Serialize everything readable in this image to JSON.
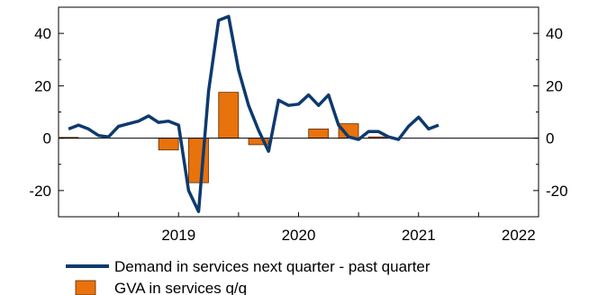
{
  "chart_data": {
    "type": "bar+line",
    "title": "",
    "xlabel": "",
    "ylabel": "",
    "ylim": [
      -30,
      50
    ],
    "y_ticks": [
      -20,
      0,
      20,
      40
    ],
    "y_tick_labels": [
      "-20",
      "0",
      "20",
      "40"
    ],
    "y_axis_right": true,
    "x_range": [
      "2018-07",
      "2022-07"
    ],
    "x_year_labels": [
      {
        "label": "2019",
        "x": "2019-07"
      },
      {
        "label": "2020",
        "x": "2020-07"
      },
      {
        "label": "2021",
        "x": "2021-07"
      },
      {
        "label": "2022",
        "x": "2022-05"
      }
    ],
    "x_tick_dates": [
      "2019-01",
      "2019-07",
      "2020-01",
      "2020-07",
      "2021-01",
      "2021-07",
      "2022-01",
      "2022-07"
    ],
    "grid": false,
    "legend_position": "bottom",
    "series": [
      {
        "name": "Demand in services next quarter - past quarter",
        "type": "line",
        "color": "#0d3a6e",
        "points": [
          [
            "2018-08",
            3.5
          ],
          [
            "2018-09",
            5
          ],
          [
            "2018-10",
            3.5
          ],
          [
            "2018-11",
            1
          ],
          [
            "2018-12",
            0.5
          ],
          [
            "2019-01",
            4.5
          ],
          [
            "2019-02",
            5.5
          ],
          [
            "2019-03",
            6.5
          ],
          [
            "2019-04",
            8.5
          ],
          [
            "2019-05",
            6
          ],
          [
            "2019-06",
            6.5
          ],
          [
            "2019-07",
            5
          ],
          [
            "2019-08",
            -20
          ],
          [
            "2019-09",
            -28
          ],
          [
            "2019-10",
            18
          ],
          [
            "2019-11",
            45
          ],
          [
            "2019-12",
            46.5
          ],
          [
            "2020-01",
            26
          ],
          [
            "2020-02",
            12.5
          ],
          [
            "2020-03",
            3
          ],
          [
            "2020-04",
            -5
          ],
          [
            "2020-05",
            14.5
          ],
          [
            "2020-06",
            12.5
          ],
          [
            "2020-07",
            13
          ],
          [
            "2020-08",
            16.5
          ],
          [
            "2020-09",
            12.5
          ],
          [
            "2020-10",
            16.5
          ],
          [
            "2020-11",
            5
          ],
          [
            "2020-12",
            0.5
          ],
          [
            "2021-01",
            -0.5
          ],
          [
            "2021-02",
            2.5
          ],
          [
            "2021-03",
            2.5
          ],
          [
            "2021-04",
            0.5
          ],
          [
            "2021-05",
            -0.5
          ],
          [
            "2021-06",
            4.5
          ],
          [
            "2021-07",
            8
          ],
          [
            "2021-08",
            3.5
          ],
          [
            "2021-09",
            5
          ]
        ]
      },
      {
        "name": "GVA in services q/q",
        "type": "bar",
        "color": "#e8720c",
        "points": [
          [
            "2018-08",
            0.3
          ],
          [
            "2019-06",
            -4.5
          ],
          [
            "2019-09",
            -17
          ],
          [
            "2019-12",
            17.5
          ],
          [
            "2020-03",
            -2.5
          ],
          [
            "2020-09",
            3.5
          ],
          [
            "2020-12",
            5.5
          ],
          [
            "2021-03",
            0.5
          ]
        ]
      }
    ]
  }
}
